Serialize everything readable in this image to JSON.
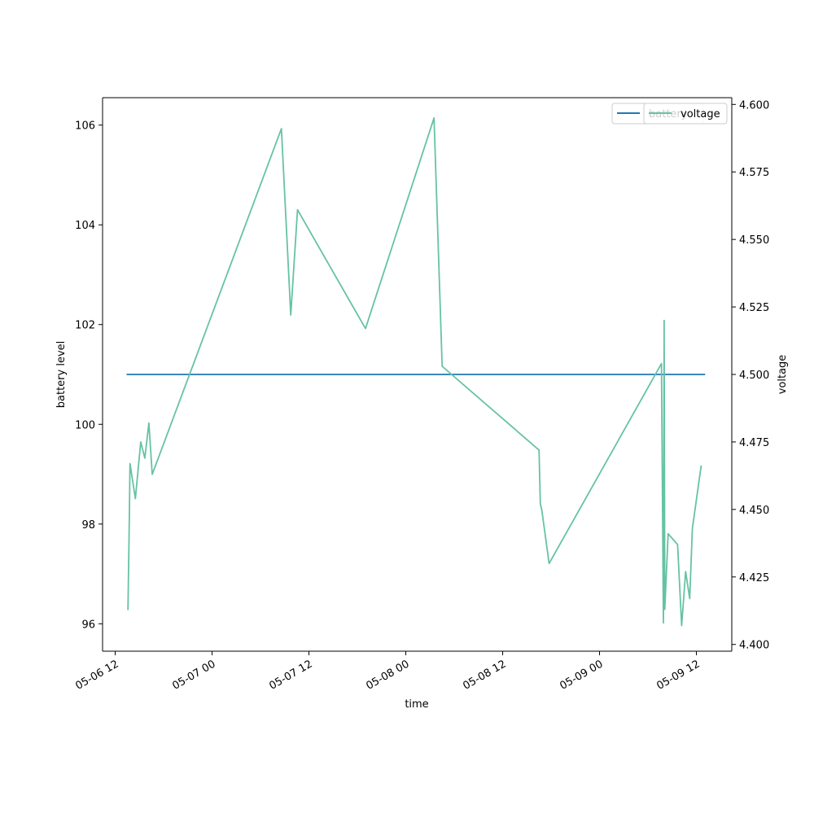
{
  "chart_data": {
    "type": "line",
    "xlabel": "time",
    "x_axis": {
      "ticks": [
        "2024-05-06 12:00",
        "2024-05-07 00:00",
        "2024-05-07 12:00",
        "2024-05-08 00:00",
        "2024-05-08 12:00",
        "2024-05-09 00:00",
        "2024-05-09 12:00"
      ],
      "tick_labels": [
        "05-06 12",
        "05-07 00",
        "05-07 12",
        "05-08 00",
        "05-08 12",
        "05-09 00",
        "05-09 12"
      ],
      "range": [
        "2024-05-06 10:26",
        "2024-05-09 16:23"
      ]
    },
    "y_left": {
      "label": "battery level",
      "range": [
        95.45,
        106.55
      ],
      "ticks": [
        96,
        98,
        100,
        102,
        104,
        106
      ]
    },
    "y_right": {
      "label": "voltage",
      "range": [
        4.3975,
        4.6025
      ],
      "ticks": [
        4.4,
        4.425,
        4.45,
        4.475,
        4.5,
        4.525,
        4.55,
        4.575,
        4.6
      ],
      "tick_labels": [
        "4.400",
        "4.425",
        "4.450",
        "4.475",
        "4.500",
        "4.525",
        "4.550",
        "4.575",
        "4.600"
      ]
    },
    "legend": {
      "position": "top-right",
      "entries": [
        "battery",
        "voltage"
      ]
    },
    "grid": false,
    "series": [
      {
        "name": "battery",
        "axis": "left",
        "color": "#1f77b4",
        "points": [
          {
            "x": "2024-05-06 13:30",
            "y": 101
          },
          {
            "x": "2024-05-09 13:00",
            "y": 101
          }
        ]
      },
      {
        "name": "voltage",
        "axis": "right",
        "color": "#66c2a5",
        "points": [
          {
            "x": "2024-05-06 13:35",
            "y": 4.413
          },
          {
            "x": "2024-05-06 13:45",
            "y": 4.447
          },
          {
            "x": "2024-05-06 13:50",
            "y": 4.467
          },
          {
            "x": "2024-05-06 14:30",
            "y": 4.454
          },
          {
            "x": "2024-05-06 15:10",
            "y": 4.475
          },
          {
            "x": "2024-05-06 15:40",
            "y": 4.469
          },
          {
            "x": "2024-05-06 16:10",
            "y": 4.482
          },
          {
            "x": "2024-05-06 16:35",
            "y": 4.463
          },
          {
            "x": "2024-05-07 08:35",
            "y": 4.591
          },
          {
            "x": "2024-05-07 09:45",
            "y": 4.522
          },
          {
            "x": "2024-05-07 10:35",
            "y": 4.561
          },
          {
            "x": "2024-05-07 19:00",
            "y": 4.517
          },
          {
            "x": "2024-05-08 03:30",
            "y": 4.595
          },
          {
            "x": "2024-05-08 04:30",
            "y": 4.503
          },
          {
            "x": "2024-05-08 16:30",
            "y": 4.472
          },
          {
            "x": "2024-05-08 16:40",
            "y": 4.452
          },
          {
            "x": "2024-05-08 16:50",
            "y": 4.45
          },
          {
            "x": "2024-05-08 17:45",
            "y": 4.43
          },
          {
            "x": "2024-05-09 07:40",
            "y": 4.504
          },
          {
            "x": "2024-05-09 07:55",
            "y": 4.408
          },
          {
            "x": "2024-05-09 08:00",
            "y": 4.52
          },
          {
            "x": "2024-05-09 08:05",
            "y": 4.413
          },
          {
            "x": "2024-05-09 08:30",
            "y": 4.441
          },
          {
            "x": "2024-05-09 09:40",
            "y": 4.437
          },
          {
            "x": "2024-05-09 10:10",
            "y": 4.407
          },
          {
            "x": "2024-05-09 10:40",
            "y": 4.427
          },
          {
            "x": "2024-05-09 11:10",
            "y": 4.417
          },
          {
            "x": "2024-05-09 11:30",
            "y": 4.443
          },
          {
            "x": "2024-05-09 12:35",
            "y": 4.466
          }
        ]
      }
    ]
  }
}
